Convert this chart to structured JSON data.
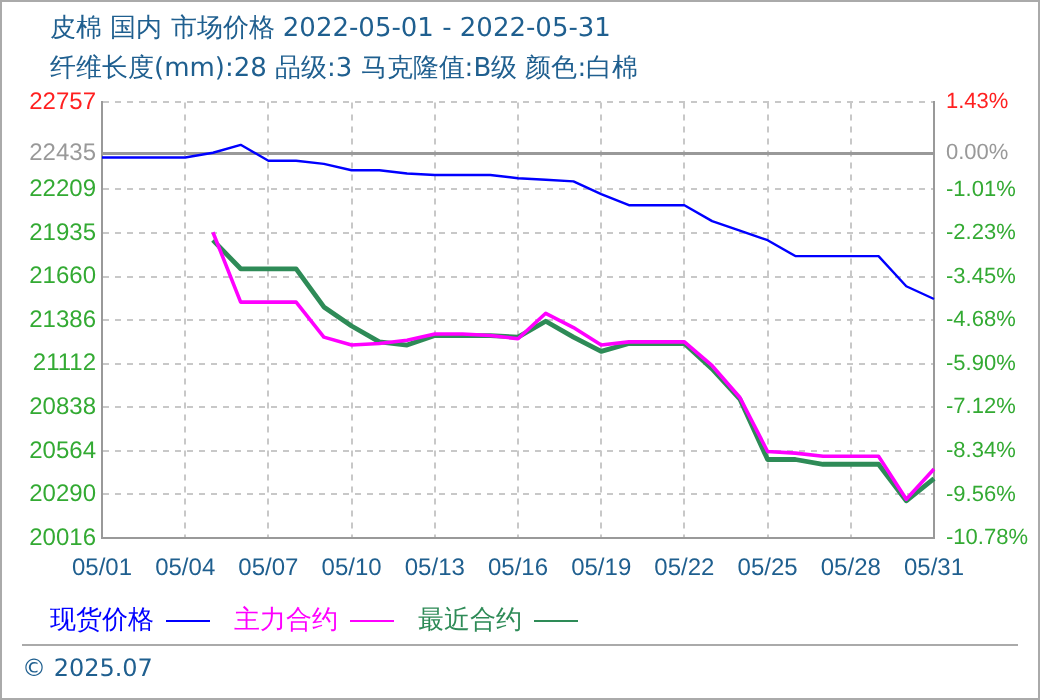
{
  "chart_data": {
    "type": "line",
    "title": "皮棉 国内 市场价格 2022-05-01 - 2022-05-31",
    "subtitle": "纤维长度(mm):28 品级:3 马克隆值:B级 颜色:白棉",
    "categories": [
      "05/01",
      null,
      null,
      "05/04",
      null,
      null,
      "05/07",
      null,
      null,
      "05/10",
      null,
      null,
      "05/13",
      null,
      null,
      "05/16",
      null,
      null,
      "05/19",
      null,
      null,
      "05/22",
      null,
      null,
      "05/25",
      null,
      null,
      "05/28",
      null,
      null,
      "05/31"
    ],
    "series": [
      {
        "name": "现货价格",
        "color": "#0000ff",
        "values": [
          22410,
          22410,
          22410,
          22410,
          22440,
          22490,
          22390,
          22390,
          22370,
          22330,
          22330,
          22310,
          22300,
          22300,
          22300,
          22280,
          22270,
          22260,
          22180,
          22110,
          22110,
          22110,
          22010,
          21950,
          21890,
          21790,
          21790,
          21790,
          21790,
          21600,
          21520
        ]
      },
      {
        "name": "主力合约",
        "color": "#ff00ff",
        "values": [
          null,
          null,
          null,
          null,
          21940,
          21500,
          21500,
          21500,
          21280,
          21230,
          21240,
          21260,
          21300,
          21300,
          21290,
          21270,
          21430,
          21340,
          21230,
          21250,
          21250,
          21250,
          21100,
          20900,
          20560,
          20550,
          20530,
          20530,
          20530,
          20260,
          20450
        ]
      },
      {
        "name": "最近合约",
        "color": "#2e8b57",
        "values": [
          null,
          null,
          null,
          null,
          21890,
          21710,
          21710,
          21710,
          21470,
          21350,
          21250,
          21230,
          21290,
          21290,
          21290,
          21280,
          21380,
          21280,
          21190,
          21240,
          21240,
          21240,
          21080,
          20890,
          20510,
          20510,
          20480,
          20480,
          20480,
          20250,
          20390
        ]
      }
    ],
    "ylim": [
      20016,
      22757
    ],
    "yticks": [
      20016,
      20290,
      20564,
      20838,
      21112,
      21386,
      21660,
      21935,
      22209,
      22435,
      22757
    ],
    "y2lim": [
      -10.78,
      1.43
    ],
    "y2ticks": [
      {
        "value": -10.78,
        "label": "-10.78%"
      },
      {
        "value": -9.56,
        "label": "-9.56%"
      },
      {
        "value": -8.34,
        "label": "-8.34%"
      },
      {
        "value": -7.12,
        "label": "-7.12%"
      },
      {
        "value": -5.9,
        "label": "-5.90%"
      },
      {
        "value": -4.68,
        "label": "-4.68%"
      },
      {
        "value": -3.45,
        "label": "-3.45%"
      },
      {
        "value": -2.23,
        "label": "-2.23%"
      },
      {
        "value": -1.01,
        "label": "-1.01%"
      },
      {
        "value": 0,
        "label": "0.00%"
      },
      {
        "value": 1.43,
        "label": "1.43%"
      }
    ],
    "ref_lines": [
      {
        "axis": "y2",
        "value": 0,
        "color": "#999999"
      }
    ],
    "grid": true,
    "legend": "bottom",
    "marker": "none",
    "annotations": [
      "© 2025.07"
    ]
  }
}
